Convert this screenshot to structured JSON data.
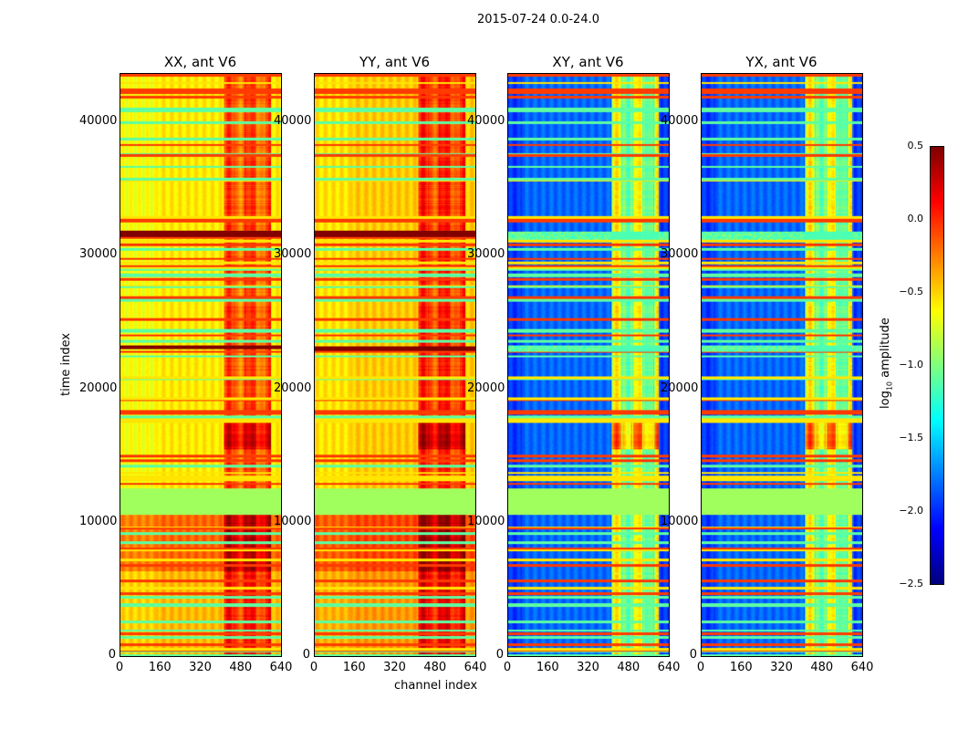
{
  "chart_data": {
    "type": "heatmap",
    "title": "2015-07-24 0.0-24.0",
    "xlabel": "channel index",
    "ylabel": "time index",
    "xlim": [
      0,
      640
    ],
    "ylim": [
      0,
      43600
    ],
    "xticks": [
      "0",
      "160",
      "320",
      "480",
      "640"
    ],
    "yticks": [
      "0",
      "10000",
      "20000",
      "30000",
      "40000"
    ],
    "panels": [
      {
        "title": "XX, ant V6",
        "base": -0.6,
        "rfi_bands": [
          [
            31400,
            31900
          ],
          [
            23000,
            23300
          ]
        ],
        "rfi_level": 0.45
      },
      {
        "title": "YY, ant V6",
        "base": -0.5,
        "rfi_bands": [
          [
            31400,
            31900
          ],
          [
            22900,
            23200
          ]
        ],
        "rfi_level": 0.45
      },
      {
        "title": "XY, ant V6",
        "base": -1.85,
        "rfi_bands": [
          [
            31200,
            31800
          ],
          [
            22800,
            23300
          ]
        ],
        "rfi_level": -1.2
      },
      {
        "title": "YX, ant V6",
        "base": -1.85,
        "rfi_bands": [
          [
            31200,
            31800
          ],
          [
            22800,
            23300
          ]
        ],
        "rfi_level": -1.2
      }
    ],
    "flagged_time_range": [
      10600,
      12600
    ],
    "flagged_value": -0.9,
    "active_channels": [
      410,
      600
    ],
    "colorbar": {
      "label_prefix": "log",
      "label_sub": "10",
      "label_suffix": " amplitude",
      "range": [
        -2.5,
        0.5
      ],
      "ticks": [
        "0.5",
        "0.0",
        "−0.5",
        "−1.0",
        "−1.5",
        "−2.0",
        "−2.5"
      ],
      "colormap": "jet"
    }
  }
}
